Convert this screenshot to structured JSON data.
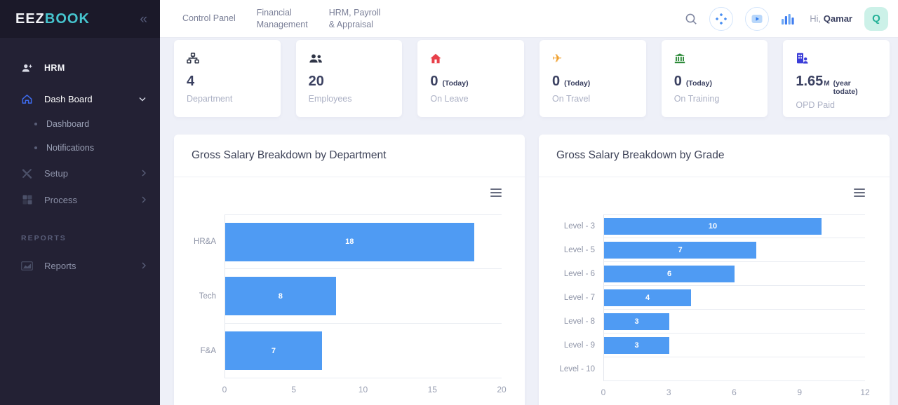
{
  "sidebar": {
    "logo_primary": "EEZ",
    "logo_secondary": "BOOK",
    "collapse_glyph": "«",
    "items": [
      {
        "label": "HRM"
      },
      {
        "label": "Dash Board"
      },
      {
        "label": "Dashboard"
      },
      {
        "label": "Notifications"
      },
      {
        "label": "Setup"
      },
      {
        "label": "Process"
      }
    ],
    "section_label": "REPORTS",
    "reports": {
      "label": "Reports"
    }
  },
  "topbar": {
    "tabs": [
      {
        "line1": "Control Panel",
        "line2": ""
      },
      {
        "line1": "Financial",
        "line2": "Management"
      },
      {
        "line1": "HRM, Payroll",
        "line2": "& Appraisal"
      }
    ],
    "greeting_prefix": "Hi,",
    "greeting_name": "Qamar",
    "avatar_letter": "Q"
  },
  "stats": [
    {
      "icon": "sitemap-icon",
      "value": "4",
      "unit": "",
      "qualifier": "",
      "label": "Department",
      "icon_color": "#2f3547"
    },
    {
      "icon": "users-icon",
      "value": "20",
      "unit": "",
      "qualifier": "",
      "label": "Employees",
      "icon_color": "#2f3547"
    },
    {
      "icon": "house-icon",
      "value": "0",
      "unit": "",
      "qualifier": "(Today)",
      "label": "On Leave",
      "icon_color": "#e8404a"
    },
    {
      "icon": "plane-icon",
      "value": "0",
      "unit": "",
      "qualifier": "(Today)",
      "label": "On Travel",
      "icon_color": "#f0a02e",
      "glyph": "✈"
    },
    {
      "icon": "bank-icon",
      "value": "0",
      "unit": "",
      "qualifier": "(Today)",
      "label": "On Training",
      "icon_color": "#2e8b3a"
    },
    {
      "icon": "building-user-icon",
      "value": "1.65",
      "unit": "M",
      "qualifier": "(year todate)",
      "label": "OPD Paid",
      "icon_color": "#3b3dd8"
    }
  ],
  "chart_data": [
    {
      "type": "bar",
      "orientation": "horizontal",
      "title": "Gross Salary Breakdown by Department",
      "categories": [
        "HR&A",
        "Tech",
        "F&A"
      ],
      "values": [
        18,
        8,
        7
      ],
      "xlim": [
        0,
        20
      ],
      "xticks": [
        0,
        5,
        10,
        15,
        20
      ],
      "bar_color": "#4f9bf3",
      "value_labels": "inside-center",
      "grid": "horizontal-only",
      "legend": "none"
    },
    {
      "type": "bar",
      "orientation": "horizontal",
      "title": "Gross Salary Breakdown by Grade",
      "categories": [
        "Level - 3",
        "Level - 5",
        "Level - 6",
        "Level - 7",
        "Level - 8",
        "Level - 9",
        "Level - 10"
      ],
      "values": [
        10,
        7,
        6,
        4,
        3,
        3,
        0
      ],
      "xlim": [
        0,
        12
      ],
      "xticks": [
        0,
        3,
        6,
        9,
        12
      ],
      "bar_color": "#4f9bf3",
      "value_labels": "inside-center",
      "grid": "horizontal-only",
      "legend": "none"
    }
  ],
  "colors": {
    "sidebar_bg": "#232134",
    "sidebar_logo_band": "#1b1929",
    "logo_teal": "#46c5cf",
    "accent_blue": "#3e6cf0",
    "bar_blue": "#4f9bf3",
    "content_bg": "#eef0f8",
    "avatar_bg": "#ccf1e8",
    "avatar_text": "#23b197"
  }
}
